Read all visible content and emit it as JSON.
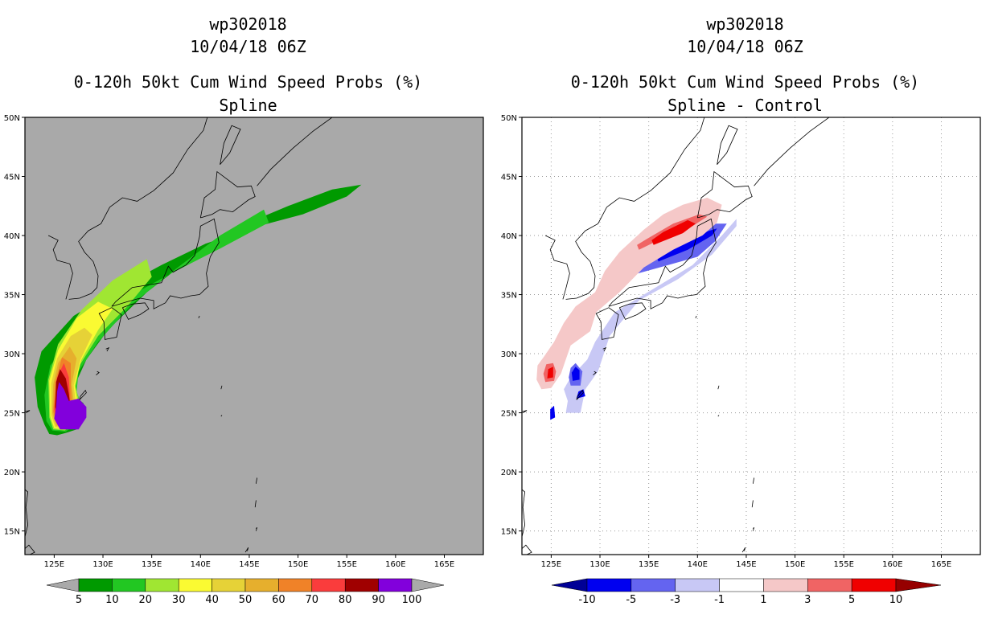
{
  "chart_data": [
    {
      "type": "heatmap",
      "panel": "left",
      "title_lines": [
        "wp302018",
        "10/04/18 06Z",
        "0-120h 50kt Cum Wind Speed Probs (%)",
        "Spline"
      ],
      "xlabel": "",
      "ylabel": "",
      "x_ticks": [
        "125E",
        "130E",
        "135E",
        "140E",
        "145E",
        "150E",
        "155E",
        "160E",
        "165E"
      ],
      "y_ticks": [
        "15N",
        "20N",
        "25N",
        "30N",
        "35N",
        "40N",
        "45N",
        "50N"
      ],
      "xlim": [
        122,
        169
      ],
      "ylim": [
        13,
        50
      ],
      "grid": false,
      "background_color": "#a9a9a9",
      "colorbar": {
        "labels": [
          "5",
          "10",
          "20",
          "30",
          "40",
          "50",
          "60",
          "70",
          "80",
          "90",
          "100"
        ],
        "colors": [
          "#009a00",
          "#22c722",
          "#a0e632",
          "#fafa32",
          "#e6d237",
          "#e6af2d",
          "#f08228",
          "#fa3c3c",
          "#a00000",
          "#8200dc"
        ],
        "end_color": "#a9a9a9"
      },
      "contours": [
        {
          "level": 5,
          "color": "#009a00",
          "lon": [
            124.5,
            125.3,
            126.2,
            127.3,
            128.2,
            128.0,
            127.3,
            127.2,
            128.3,
            130.5,
            134.5,
            139.5,
            143.5,
            149.0,
            153.5,
            156.5,
            155.0,
            150.5,
            145.5,
            140.5,
            136.0,
            131.5,
            127.0,
            123.7,
            123.0,
            123.3,
            124.0
          ],
          "lat": [
            23.2,
            23.1,
            23.3,
            23.6,
            24.8,
            25.8,
            26.3,
            27.5,
            29.5,
            32.0,
            35.2,
            38.4,
            40.6,
            42.5,
            43.9,
            44.3,
            43.3,
            41.8,
            40.7,
            39.3,
            37.5,
            35.5,
            33.2,
            30.2,
            28.0,
            25.5,
            24.0
          ]
        },
        {
          "level": 10,
          "color": "#22c722",
          "lon": [
            124.8,
            126.2,
            127.6,
            127.8,
            127.3,
            127.5,
            129.5,
            133.0,
            137.5,
            142.0,
            146.5,
            147.0,
            142.0,
            137.0,
            131.5,
            127.0,
            124.6,
            124.0,
            124.2
          ],
          "lat": [
            23.5,
            23.4,
            24.3,
            25.6,
            26.8,
            28.5,
            31.0,
            34.2,
            37.2,
            40.0,
            42.2,
            41.1,
            38.9,
            36.8,
            34.3,
            31.5,
            29.0,
            26.5,
            24.3
          ]
        },
        {
          "level": 20,
          "color": "#a0e632",
          "lon": [
            124.9,
            126.1,
            127.4,
            127.6,
            127.2,
            127.6,
            129.5,
            132.5,
            135.0,
            134.5,
            131.0,
            127.8,
            125.4,
            124.4,
            124.5
          ],
          "lat": [
            23.6,
            23.5,
            24.5,
            25.8,
            27.2,
            29.0,
            31.5,
            34.0,
            36.5,
            38.0,
            36.2,
            33.7,
            30.8,
            27.8,
            24.6
          ]
        },
        {
          "level": 30,
          "color": "#fafa32",
          "lon": [
            125.0,
            126.0,
            127.3,
            127.4,
            127.1,
            127.8,
            129.5,
            131.0,
            129.5,
            127.3,
            125.4,
            124.5,
            124.6
          ],
          "lat": [
            23.7,
            23.6,
            24.6,
            25.9,
            27.3,
            29.5,
            32.0,
            33.8,
            34.4,
            33.0,
            30.3,
            27.7,
            24.7
          ]
        },
        {
          "level": 40,
          "color": "#e6d237",
          "lon": [
            125.1,
            126.0,
            127.2,
            127.2,
            127.0,
            127.7,
            128.9,
            128.1,
            126.7,
            125.3,
            124.7,
            124.7
          ],
          "lat": [
            23.8,
            23.7,
            24.8,
            26.0,
            27.3,
            29.5,
            31.6,
            32.2,
            31.5,
            29.6,
            27.5,
            24.8
          ]
        },
        {
          "level": 50,
          "color": "#e6af2d",
          "lon": [
            125.2,
            126.0,
            127.0,
            127.0,
            126.8,
            127.3,
            126.6,
            125.4,
            124.9,
            124.8
          ],
          "lat": [
            23.9,
            23.8,
            24.9,
            26.0,
            27.4,
            29.6,
            30.6,
            29.2,
            27.4,
            25.0
          ]
        },
        {
          "level": 60,
          "color": "#f08228",
          "lon": [
            125.3,
            126.0,
            126.9,
            126.8,
            126.7,
            126.7,
            125.8,
            125.1,
            124.9
          ],
          "lat": [
            24.0,
            23.9,
            25.0,
            26.1,
            27.5,
            29.2,
            29.7,
            27.6,
            25.1
          ]
        },
        {
          "level": 70,
          "color": "#fa3c3c",
          "lon": [
            125.4,
            126.0,
            126.8,
            126.6,
            126.5,
            126.0,
            125.3,
            125.0
          ],
          "lat": [
            24.1,
            24.0,
            25.1,
            26.3,
            28.0,
            29.2,
            28.0,
            25.3
          ]
        },
        {
          "level": 80,
          "color": "#a00000",
          "lon": [
            125.5,
            126.2,
            126.7,
            126.5,
            126.2,
            125.6,
            125.2,
            125.1
          ],
          "lat": [
            24.2,
            24.1,
            25.3,
            26.6,
            27.9,
            28.7,
            27.6,
            25.5
          ]
        },
        {
          "level": 90,
          "color": "#8200dc",
          "lon": [
            125.6,
            127.5,
            128.3,
            128.3,
            127.5,
            126.5,
            126.0,
            125.5,
            125.3,
            125.2,
            125.0
          ],
          "lat": [
            23.6,
            23.6,
            24.6,
            25.5,
            26.2,
            26.0,
            27.0,
            27.6,
            26.8,
            25.5,
            24.5
          ]
        }
      ]
    },
    {
      "type": "heatmap",
      "panel": "right",
      "title_lines": [
        "wp302018",
        "10/04/18 06Z",
        "0-120h 50kt Cum Wind Speed Probs (%)",
        "Spline - Control"
      ],
      "xlabel": "",
      "ylabel": "",
      "x_ticks": [
        "125E",
        "130E",
        "135E",
        "140E",
        "145E",
        "150E",
        "155E",
        "160E",
        "165E"
      ],
      "y_ticks": [
        "15N",
        "20N",
        "25N",
        "30N",
        "35N",
        "40N",
        "45N",
        "50N"
      ],
      "xlim": [
        122,
        169
      ],
      "ylim": [
        13,
        50
      ],
      "grid": true,
      "background_color": "#ffffff",
      "colorbar": {
        "labels": [
          "-10",
          "-5",
          "-3",
          "-1",
          "1",
          "3",
          "5",
          "10"
        ],
        "colors": [
          "#000096",
          "#0000f0",
          "#6464f0",
          "#c8c8f5",
          "#ffffff",
          "#f5c8c8",
          "#f06464",
          "#f00000",
          "#960000"
        ]
      },
      "contours": [
        {
          "level": -1,
          "color": "#c8c8f5",
          "lon": [
            126.5,
            128.0,
            128.5,
            129.8,
            131.0,
            134.0,
            138.0,
            141.5,
            144.0,
            144.0,
            142.5,
            139.5,
            135.5,
            131.5,
            129.5,
            128.7,
            127.0,
            126.3,
            126.7
          ],
          "lat": [
            25.0,
            25.0,
            27.0,
            28.5,
            31.5,
            34.5,
            36.3,
            38.4,
            40.8,
            41.4,
            40.0,
            37.5,
            35.5,
            33.5,
            31.0,
            29.5,
            28.0,
            27.0,
            26.0
          ]
        },
        {
          "level": -3,
          "color": "#6464f0",
          "lon": [
            127.0,
            128.0,
            128.2,
            127.5,
            127.0,
            126.8
          ],
          "lat": [
            27.3,
            27.3,
            28.5,
            29.2,
            28.8,
            28.0
          ]
        },
        {
          "level": -3,
          "color": "#6464f0",
          "lon": [
            133.5,
            137.0,
            140.0,
            141.8,
            143.0,
            141.5,
            139.5,
            137.5,
            134.5,
            133.2
          ],
          "lat": [
            36.7,
            37.5,
            38.2,
            39.5,
            41.0,
            41.0,
            40.0,
            39.0,
            37.7,
            37.0
          ]
        },
        {
          "level": -5,
          "color": "#0000f0",
          "lon": [
            127.2,
            127.9,
            127.9,
            127.5,
            127.1
          ],
          "lat": [
            27.7,
            27.8,
            28.6,
            28.9,
            28.4
          ]
        },
        {
          "level": -5,
          "color": "#0000f0",
          "lon": [
            136.0,
            139.0,
            141.5,
            142.0,
            140.8,
            138.0,
            135.8
          ],
          "lat": [
            37.8,
            38.8,
            40.0,
            40.6,
            40.3,
            39.2,
            38.2
          ]
        },
        {
          "level": -5,
          "color": "#0000f0",
          "lon": [
            127.6,
            128.5,
            128.3,
            127.8
          ],
          "lat": [
            26.2,
            26.4,
            27.0,
            26.8
          ]
        },
        {
          "level": -5,
          "color": "#0000f0",
          "lon": [
            124.9,
            125.4,
            125.3,
            124.9
          ],
          "lat": [
            24.4,
            24.6,
            25.6,
            25.3
          ]
        },
        {
          "level": 1,
          "color": "#f5c8c8",
          "lon": [
            124.0,
            125.0,
            126.0,
            127.0,
            129.0,
            129.6,
            132.0,
            134.5,
            137.5,
            140.5,
            142.0,
            142.5,
            141.0,
            138.5,
            136.5,
            134.5,
            132.0,
            130.5,
            129.5,
            127.5,
            126.3,
            125.3,
            124.3,
            123.6,
            123.5
          ],
          "lat": [
            27.0,
            27.1,
            28.3,
            30.7,
            31.9,
            33.5,
            35.2,
            37.3,
            38.8,
            40.0,
            41.1,
            42.6,
            43.2,
            42.6,
            41.8,
            40.5,
            38.6,
            37.0,
            35.2,
            34.0,
            32.6,
            31.0,
            29.8,
            29.0,
            27.8
          ]
        },
        {
          "level": 3,
          "color": "#f06464",
          "lon": [
            134.0,
            137.0,
            139.5,
            141.0,
            140.2,
            137.5,
            134.8,
            133.8
          ],
          "lat": [
            38.8,
            40.0,
            40.8,
            41.6,
            41.8,
            41.0,
            39.7,
            39.2
          ]
        },
        {
          "level": 3,
          "color": "#f06464",
          "lon": [
            124.4,
            125.3,
            125.5,
            125.2,
            124.5,
            124.2
          ],
          "lat": [
            27.6,
            27.7,
            28.5,
            29.2,
            29.1,
            28.3
          ]
        },
        {
          "level": 5,
          "color": "#f00000",
          "lon": [
            124.6,
            125.2,
            125.2,
            124.7
          ],
          "lat": [
            27.9,
            28.0,
            28.9,
            28.7
          ]
        },
        {
          "level": 5,
          "color": "#f00000",
          "lon": [
            135.5,
            138.5,
            139.8,
            139.0,
            136.5,
            135.3
          ],
          "lat": [
            39.2,
            40.2,
            41.0,
            41.3,
            40.3,
            39.6
          ]
        }
      ]
    }
  ]
}
